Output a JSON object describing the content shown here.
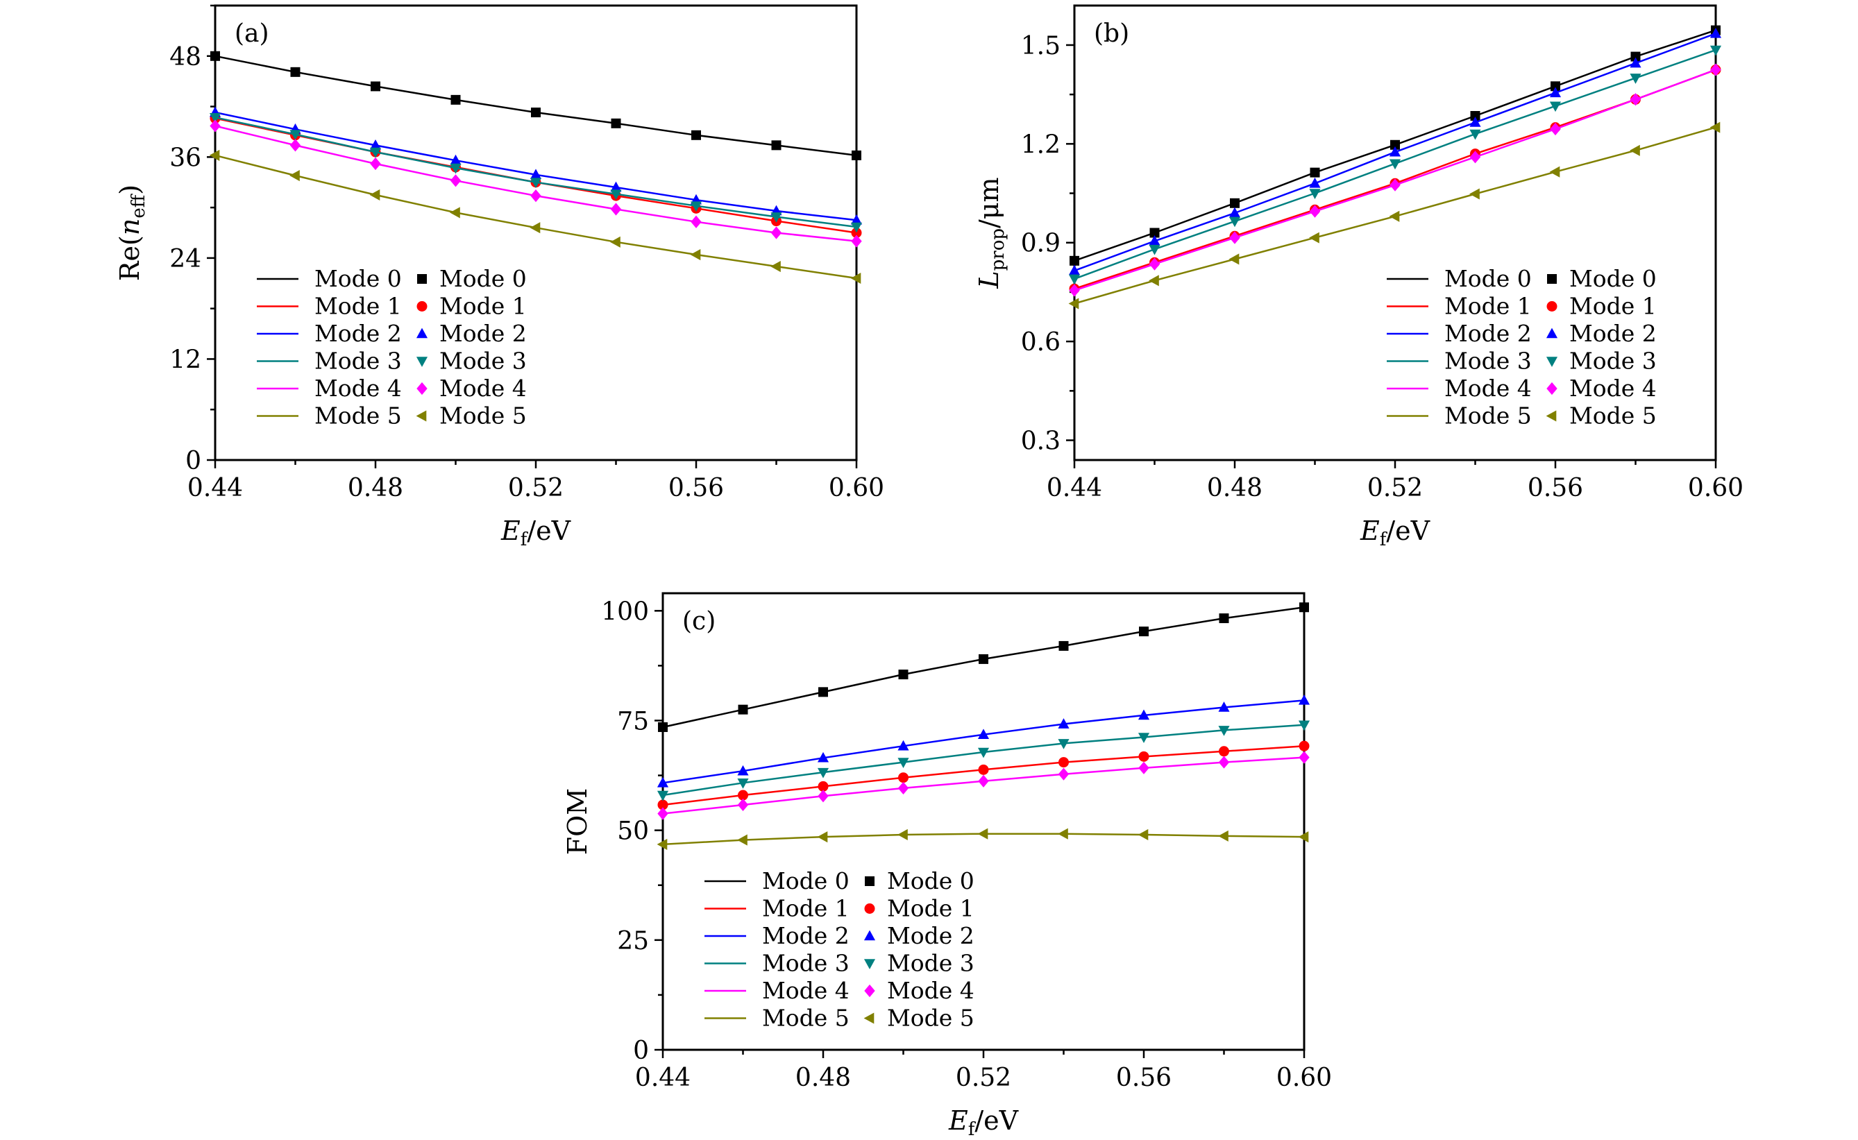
{
  "modes": [
    {
      "name": "Mode 0",
      "color": "#000000",
      "marker": "square"
    },
    {
      "name": "Mode 1",
      "color": "#ff0000",
      "marker": "circle"
    },
    {
      "name": "Mode 2",
      "color": "#0000ff",
      "marker": "triangle-up"
    },
    {
      "name": "Mode 3",
      "color": "#008080",
      "marker": "triangle-down"
    },
    {
      "name": "Mode 4",
      "color": "#ff00ff",
      "marker": "diamond"
    },
    {
      "name": "Mode 5",
      "color": "#808000",
      "marker": "triangle-left"
    }
  ],
  "chart_data": [
    {
      "type": "line",
      "panel_label": "(a)",
      "xlabel": "E_f/eV",
      "ylabel": "Re(n_eff)",
      "xlim": [
        0.44,
        0.6
      ],
      "ylim": [
        0,
        54
      ],
      "xticks": [
        "0.44",
        "0.48",
        "0.52",
        "0.56",
        "0.60"
      ],
      "yticks": [
        "0",
        "12",
        "24",
        "36",
        "48"
      ],
      "x": [
        0.44,
        0.46,
        0.48,
        0.5,
        0.52,
        0.54,
        0.56,
        0.58,
        0.6
      ],
      "legend": "bottom-left",
      "series": [
        {
          "name": "Mode 0",
          "values": [
            48.0,
            46.1,
            44.4,
            42.8,
            41.3,
            40.0,
            38.6,
            37.4,
            36.2
          ]
        },
        {
          "name": "Mode 1",
          "values": [
            40.6,
            38.6,
            36.6,
            34.8,
            33.0,
            31.4,
            29.9,
            28.4,
            27.0
          ]
        },
        {
          "name": "Mode 2",
          "values": [
            41.3,
            39.3,
            37.4,
            35.6,
            33.9,
            32.4,
            30.9,
            29.6,
            28.5
          ]
        },
        {
          "name": "Mode 3",
          "values": [
            40.7,
            38.7,
            36.6,
            34.7,
            33.0,
            31.6,
            30.2,
            28.9,
            27.7
          ]
        },
        {
          "name": "Mode 4",
          "values": [
            39.7,
            37.4,
            35.2,
            33.2,
            31.4,
            29.8,
            28.3,
            27.0,
            26.0
          ]
        },
        {
          "name": "Mode 5",
          "values": [
            36.2,
            33.8,
            31.5,
            29.4,
            27.6,
            25.9,
            24.4,
            23.0,
            21.6
          ]
        }
      ]
    },
    {
      "type": "line",
      "panel_label": "(b)",
      "xlabel": "E_f/eV",
      "ylabel": "L_prop/μm",
      "xlim": [
        0.44,
        0.6
      ],
      "ylim": [
        0.24,
        1.62
      ],
      "xticks": [
        "0.44",
        "0.48",
        "0.52",
        "0.56",
        "0.60"
      ],
      "yticks": [
        "0.3",
        "0.6",
        "0.9",
        "1.2",
        "1.5"
      ],
      "x": [
        0.44,
        0.46,
        0.48,
        0.5,
        0.52,
        0.54,
        0.56,
        0.58,
        0.6
      ],
      "legend": "bottom-right",
      "series": [
        {
          "name": "Mode 0",
          "values": [
            0.845,
            0.93,
            1.02,
            1.113,
            1.197,
            1.285,
            1.375,
            1.465,
            1.545
          ]
        },
        {
          "name": "Mode 1",
          "values": [
            0.76,
            0.84,
            0.92,
            1.0,
            1.08,
            1.17,
            1.25,
            1.335,
            1.425
          ]
        },
        {
          "name": "Mode 2",
          "values": [
            0.815,
            0.905,
            0.99,
            1.08,
            1.175,
            1.265,
            1.355,
            1.445,
            1.535
          ]
        },
        {
          "name": "Mode 3",
          "values": [
            0.79,
            0.88,
            0.965,
            1.05,
            1.14,
            1.23,
            1.315,
            1.4,
            1.485
          ]
        },
        {
          "name": "Mode 4",
          "values": [
            0.755,
            0.835,
            0.915,
            0.995,
            1.075,
            1.16,
            1.245,
            1.335,
            1.425
          ]
        },
        {
          "name": "Mode 5",
          "values": [
            0.715,
            0.785,
            0.85,
            0.915,
            0.98,
            1.048,
            1.115,
            1.18,
            1.25
          ]
        }
      ]
    },
    {
      "type": "line",
      "panel_label": "(c)",
      "xlabel": "E_f/eV",
      "ylabel": "FOM",
      "xlim": [
        0.44,
        0.6
      ],
      "ylim": [
        0,
        104
      ],
      "xticks": [
        "0.44",
        "0.48",
        "0.52",
        "0.56",
        "0.60"
      ],
      "yticks": [
        "0",
        "25",
        "50",
        "75",
        "100"
      ],
      "x": [
        0.44,
        0.46,
        0.48,
        0.5,
        0.52,
        0.54,
        0.56,
        0.58,
        0.6
      ],
      "legend": "bottom-left",
      "series": [
        {
          "name": "Mode 0",
          "values": [
            73.5,
            77.5,
            81.5,
            85.5,
            89.0,
            92.0,
            95.3,
            98.3,
            100.8
          ]
        },
        {
          "name": "Mode 1",
          "values": [
            55.8,
            58.0,
            60.0,
            62.0,
            63.8,
            65.5,
            66.8,
            68.0,
            69.2
          ]
        },
        {
          "name": "Mode 2",
          "values": [
            60.8,
            63.5,
            66.5,
            69.2,
            71.8,
            74.2,
            76.2,
            78.0,
            79.6
          ]
        },
        {
          "name": "Mode 3",
          "values": [
            58.0,
            60.8,
            63.2,
            65.5,
            67.8,
            69.8,
            71.2,
            72.8,
            74.0
          ]
        },
        {
          "name": "Mode 4",
          "values": [
            53.8,
            55.8,
            57.8,
            59.6,
            61.2,
            62.8,
            64.2,
            65.5,
            66.6
          ]
        },
        {
          "name": "Mode 5",
          "values": [
            46.8,
            47.8,
            48.5,
            49.0,
            49.2,
            49.2,
            49.0,
            48.7,
            48.5
          ]
        }
      ]
    }
  ]
}
